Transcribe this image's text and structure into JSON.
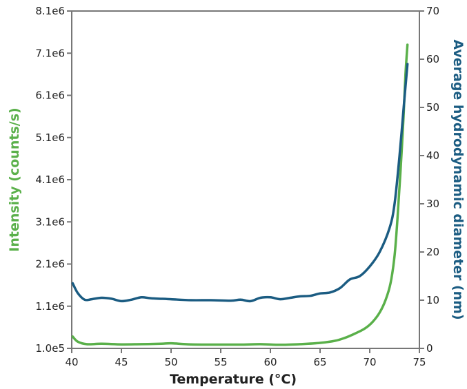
{
  "chart_data": {
    "type": "line",
    "xlabel": "Temperature (°C)",
    "ylabel_left": "Intensity (counts/s)",
    "ylabel_right": "Average hydrodynamic diameter (nm)",
    "xlim": [
      40,
      75
    ],
    "ylim_left": [
      100000,
      8100000
    ],
    "ylim_right": [
      0,
      70
    ],
    "x_ticks": [
      40,
      45,
      50,
      55,
      60,
      65,
      70,
      75
    ],
    "x_tick_labels": [
      "40",
      "45",
      "50",
      "55",
      "60",
      "65",
      "70",
      "75"
    ],
    "y_left_ticks": [
      100000,
      1100000,
      2100000,
      3100000,
      4100000,
      5100000,
      6100000,
      7100000,
      8100000
    ],
    "y_left_tick_labels": [
      "1.0e5",
      "1.1e6",
      "2.1e6",
      "3.1e6",
      "4.1e6",
      "5.1e6",
      "6.1e6",
      "7.1e6",
      "8.1e6"
    ],
    "y_right_ticks": [
      0,
      10,
      20,
      30,
      40,
      50,
      60,
      70
    ],
    "y_right_tick_labels": [
      "0",
      "10",
      "20",
      "30",
      "40",
      "50",
      "60",
      "70"
    ],
    "grid": false,
    "legend": "none",
    "series": [
      {
        "axis": "left",
        "color": "#5ab04a",
        "x": [
          40.1,
          40.6,
          41.5,
          43.0,
          45.0,
          47.0,
          49.0,
          50.0,
          52.0,
          55.0,
          57.0,
          59.0,
          61.0,
          63.0,
          65.0,
          66.5,
          67.5,
          68.5,
          69.5,
          70.3,
          71.0,
          71.6,
          72.1,
          72.5,
          72.8,
          73.1,
          73.4,
          73.6,
          73.8
        ],
        "y": [
          380000,
          260000,
          200000,
          210000,
          195000,
          200000,
          210000,
          220000,
          195000,
          190000,
          190000,
          200000,
          185000,
          200000,
          230000,
          280000,
          350000,
          450000,
          570000,
          730000,
          950000,
          1250000,
          1650000,
          2300000,
          3200000,
          4300000,
          5600000,
          6600000,
          7300000
        ]
      },
      {
        "axis": "right",
        "color": "#1b5c82",
        "x": [
          40.1,
          40.6,
          41.3,
          42.0,
          43.0,
          44.0,
          45.0,
          46.0,
          47.0,
          48.0,
          50.0,
          52.0,
          54.0,
          56.0,
          57.0,
          58.0,
          59.0,
          60.0,
          61.0,
          62.0,
          63.0,
          64.0,
          65.0,
          66.0,
          67.0,
          68.0,
          69.0,
          70.0,
          71.0,
          72.0,
          72.5,
          73.0,
          73.5,
          73.8
        ],
        "y": [
          13.5,
          11.5,
          10.1,
          10.2,
          10.5,
          10.3,
          9.8,
          10.1,
          10.6,
          10.4,
          10.2,
          10.0,
          10.0,
          9.9,
          10.1,
          9.8,
          10.5,
          10.6,
          10.2,
          10.5,
          10.8,
          10.9,
          11.4,
          11.6,
          12.5,
          14.3,
          15.0,
          17.0,
          20.0,
          25.0,
          30.0,
          40.0,
          52.0,
          59.0
        ]
      }
    ]
  }
}
